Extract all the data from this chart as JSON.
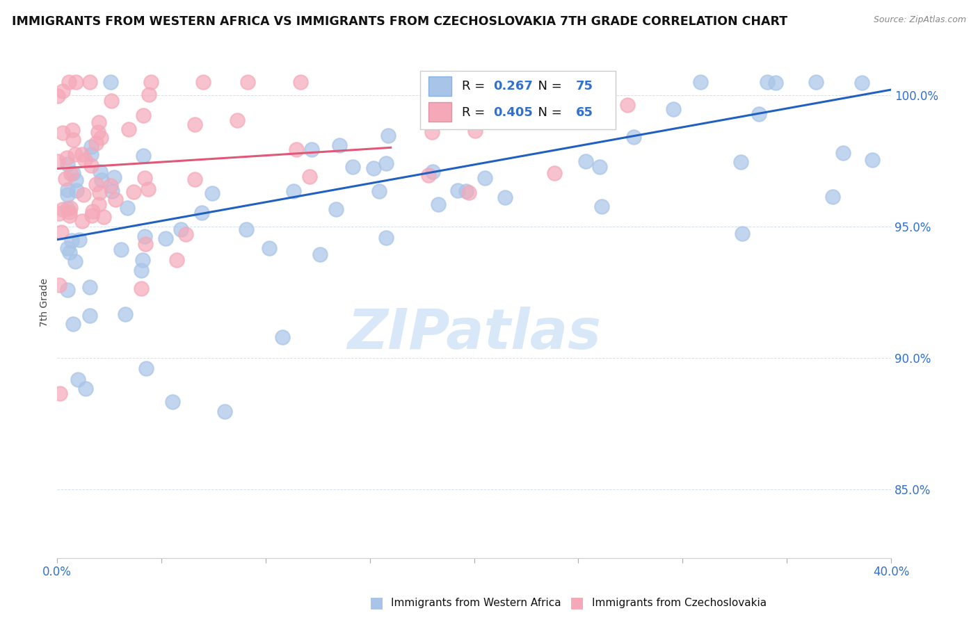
{
  "title": "IMMIGRANTS FROM WESTERN AFRICA VS IMMIGRANTS FROM CZECHOSLOVAKIA 7TH GRADE CORRELATION CHART",
  "source": "Source: ZipAtlas.com",
  "ylabel": "7th Grade",
  "xlim": [
    0.0,
    0.4
  ],
  "ylim": [
    0.824,
    1.018
  ],
  "y_tick_vals": [
    0.85,
    0.9,
    0.95,
    1.0
  ],
  "y_tick_labels": [
    "85.0%",
    "90.0%",
    "95.0%",
    "100.0%"
  ],
  "R_blue": "0.267",
  "N_blue": "75",
  "R_pink": "0.405",
  "N_pink": "65",
  "legend_label_blue": "Immigrants from Western Africa",
  "legend_label_pink": "Immigrants from Czechoslovakia",
  "dot_color_blue": "#a8c4e8",
  "dot_color_pink": "#f5a8b8",
  "line_color_blue": "#2060c0",
  "line_color_pink": "#e05878",
  "tick_label_color": "#3070d0",
  "watermark_color": "#d8e8f8",
  "background_color": "#ffffff",
  "blue_line_x0": 0.0,
  "blue_line_y0": 0.945,
  "blue_line_x1": 0.4,
  "blue_line_y1": 1.002,
  "pink_line_x0": 0.0,
  "pink_line_y0": 0.972,
  "pink_line_x1": 0.16,
  "pink_line_y1": 0.98
}
